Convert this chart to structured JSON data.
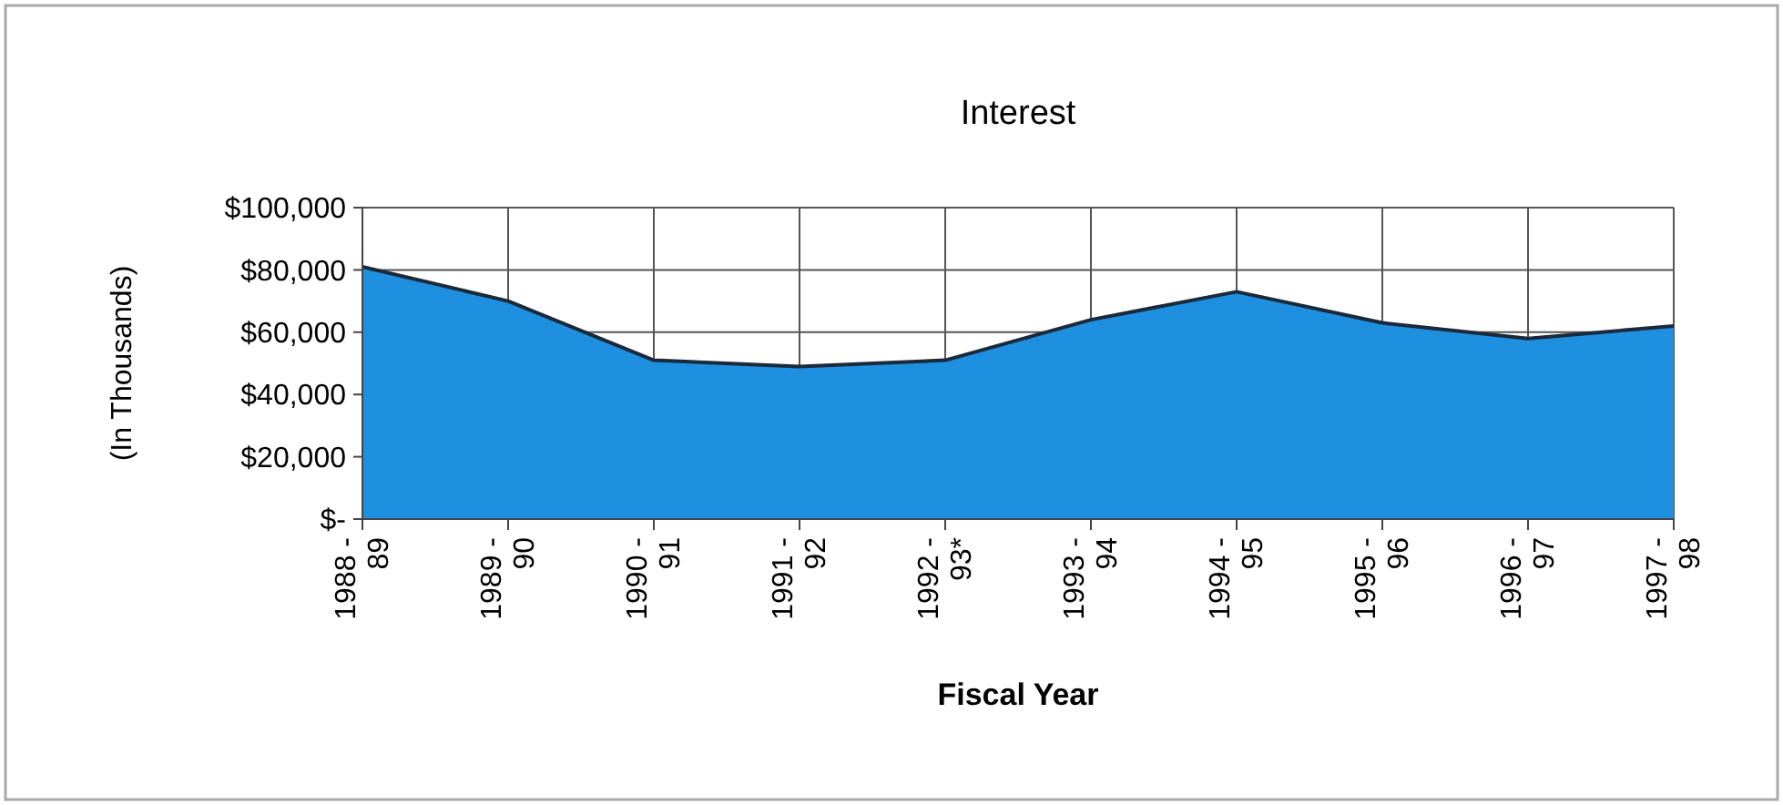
{
  "chart_data": {
    "type": "area",
    "title": "Interest",
    "xlabel": "Fiscal Year",
    "ylabel": "(In Thousands)",
    "categories": [
      "1988 -\n89",
      "1989 -\n90",
      "1990 -\n91",
      "1991 -\n92",
      "1992 -\n93*",
      "1993 -\n94",
      "1994 -\n95",
      "1995 -\n96",
      "1996 -\n97",
      "1997 -\n98"
    ],
    "values": [
      81000,
      70000,
      51000,
      49000,
      51000,
      64000,
      73000,
      63000,
      58000,
      62000
    ],
    "color": "#1f8fe0",
    "ylim": [
      0,
      100000
    ],
    "yticks": [
      {
        "value": 0,
        "label": "$-"
      },
      {
        "value": 20000,
        "label": "$20,000"
      },
      {
        "value": 40000,
        "label": "$40,000"
      },
      {
        "value": 60000,
        "label": "$60,000"
      },
      {
        "value": 80000,
        "label": "$80,000"
      },
      {
        "value": 100000,
        "label": "$100,000"
      }
    ],
    "grid": true
  }
}
